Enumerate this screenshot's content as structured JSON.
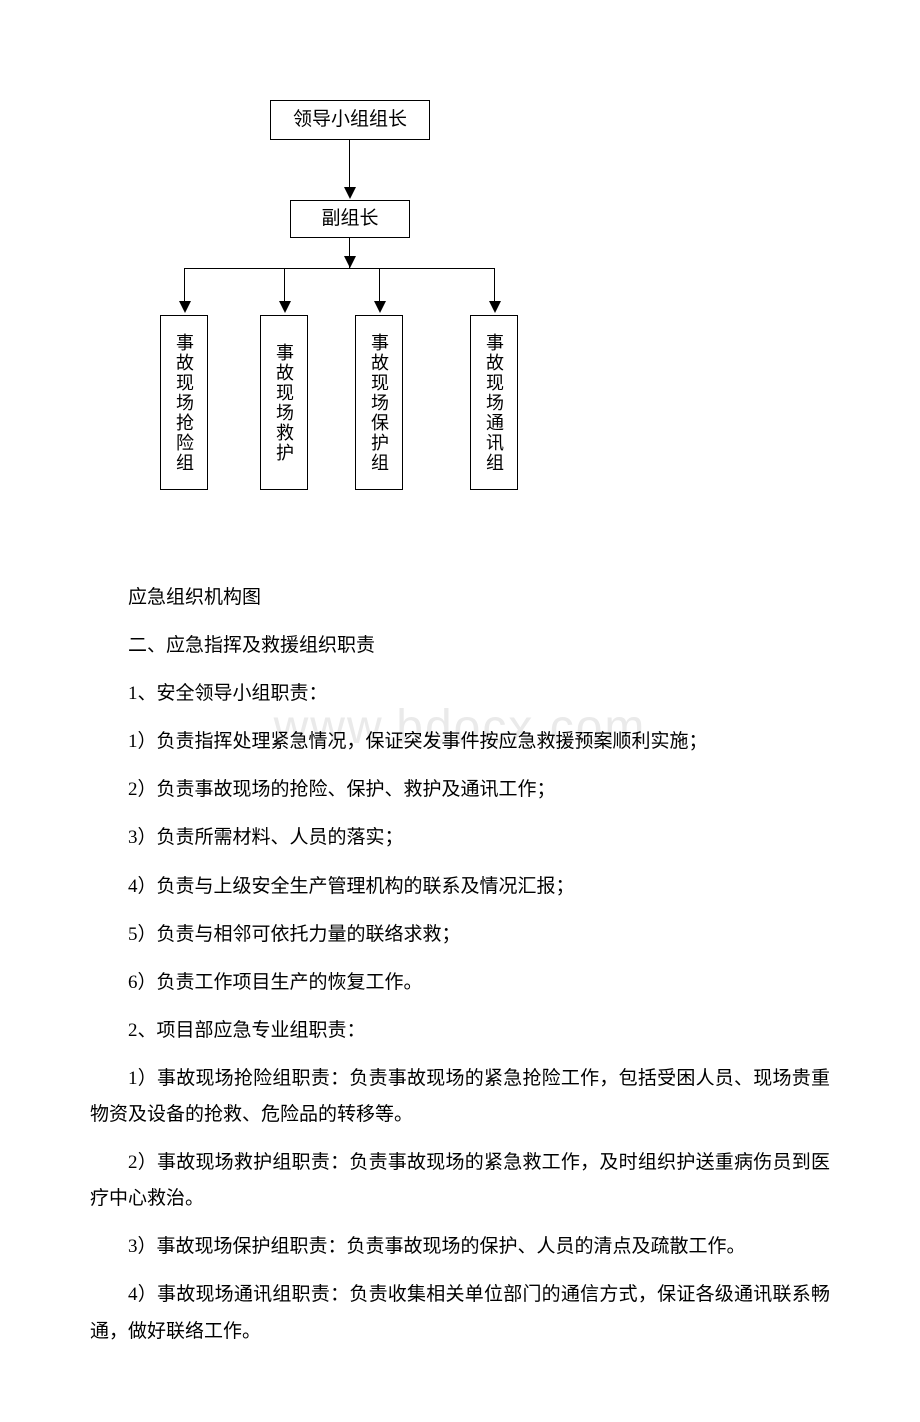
{
  "watermark": "www.bdocx.com",
  "diagram": {
    "type": "flowchart",
    "background_color": "#ffffff",
    "node_border_color": "#000000",
    "font_size": 19,
    "layout": "hierarchical-tree-3-levels",
    "nodes": {
      "top": "领导小组组长",
      "mid": "副组长",
      "leaf1": "事故现场抢险组",
      "leaf2": "事故现场救护",
      "leaf3": "事故现场保护组",
      "leaf4": "事故现场通讯组"
    },
    "edges": [
      {
        "from": "top",
        "to": "mid",
        "arrow": true
      },
      {
        "from": "mid",
        "to": "leaf1",
        "arrow": true
      },
      {
        "from": "mid",
        "to": "leaf2",
        "arrow": true
      },
      {
        "from": "mid",
        "to": "leaf3",
        "arrow": true
      },
      {
        "from": "mid",
        "to": "leaf4",
        "arrow": true
      }
    ]
  },
  "text": {
    "caption": "应急组织机构图",
    "h1": "二、应急指挥及救援组织职责",
    "s1_title": "1、安全领导小组职责：",
    "s1_1": "1）负责指挥处理紧急情况，保证突发事件按应急救援预案顺利实施；",
    "s1_2": "2）负责事故现场的抢险、保护、救护及通讯工作；",
    "s1_3": "3）负责所需材料、人员的落实；",
    "s1_4": "4）负责与上级安全生产管理机构的联系及情况汇报；",
    "s1_5": "5）负责与相邻可依托力量的联络求救；",
    "s1_6": "6）负责工作项目生产的恢复工作。",
    "s2_title": "2、项目部应急专业组职责：",
    "s2_1": "1）事故现场抢险组职责：负责事故现场的紧急抢险工作，包括受困人员、现场贵重物资及设备的抢救、危险品的转移等。",
    "s2_2": "2）事故现场救护组职责：负责事故现场的紧急救工作，及时组织护送重病伤员到医疗中心救治。",
    "s2_3": "3）事故现场保护组职责：负责事故现场的保护、人员的清点及疏散工作。",
    "s2_4": "4）事故现场通讯组职责：负责收集相关单位部门的通信方式，保证各级通讯联系畅通，做好联络工作。"
  }
}
